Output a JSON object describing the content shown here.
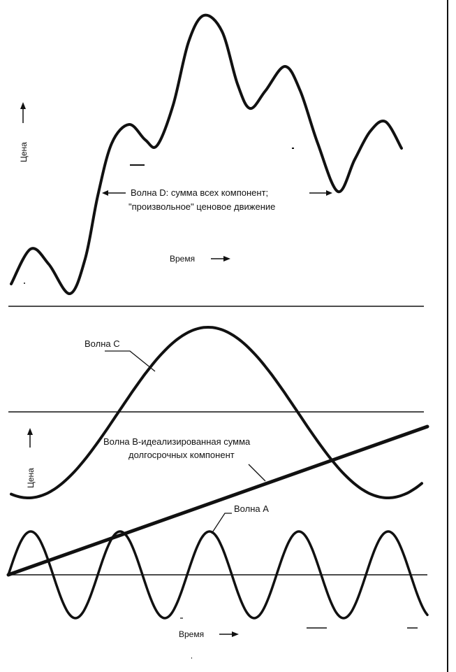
{
  "top_panel": {
    "wave_d_label_line1": "Волна D: сумма всех компонент;",
    "wave_d_label_line2": "\"произвольное\" ценовое движение",
    "y_axis_label": "Цена",
    "x_axis_label": "Время"
  },
  "bottom_panel": {
    "wave_c_label": "Волна С",
    "wave_b_label_line1": "Волна В-идеализированная сумма",
    "wave_b_label_line2": "долгосрочных компонент",
    "wave_a_label": "Волна А",
    "y_axis_label": "Цена",
    "x_axis_label": "Время"
  },
  "colors": {
    "ink": "#111111",
    "background": "#ffffff"
  }
}
